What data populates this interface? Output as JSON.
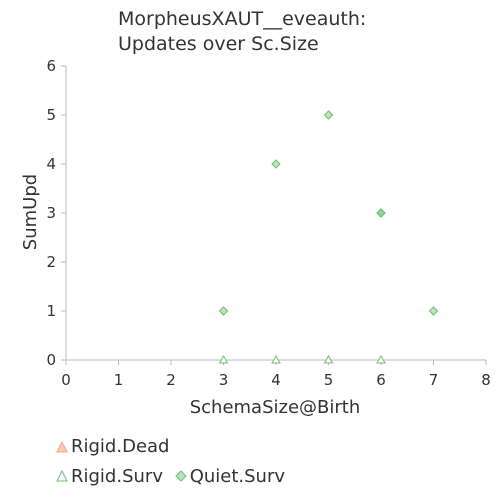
{
  "chart_data": {
    "type": "scatter",
    "title": [
      "MorpheusXAUT__eveauth:",
      "Updates over Sc.Size"
    ],
    "xlabel": "SchemaSize@Birth",
    "ylabel": "SumUpd",
    "xlim": [
      0,
      8
    ],
    "ylim": [
      0,
      6
    ],
    "xticks": [
      "0",
      "1",
      "2",
      "3",
      "4",
      "5",
      "6",
      "7",
      "8"
    ],
    "yticks": [
      "0",
      "1",
      "2",
      "3",
      "4",
      "5",
      "6"
    ],
    "grid": false,
    "legend_placement": "bottom",
    "series": [
      {
        "name": "Rigid.Dead",
        "marker": "triangle",
        "color": "#f4a582",
        "points": [
          [
            5,
            0
          ]
        ]
      },
      {
        "name": "Rigid.Surv",
        "marker": "triangle",
        "color": "#6dbf6d",
        "points": [
          [
            3,
            0
          ],
          [
            4,
            0
          ],
          [
            5,
            0
          ],
          [
            6,
            0
          ]
        ]
      },
      {
        "name": "Quiet.Surv",
        "marker": "diamond",
        "color": "#6dbf6d",
        "points": [
          [
            3,
            1
          ],
          [
            4,
            4
          ],
          [
            5,
            5
          ],
          [
            6,
            3
          ],
          [
            6,
            3
          ],
          [
            7,
            1
          ]
        ]
      }
    ]
  }
}
